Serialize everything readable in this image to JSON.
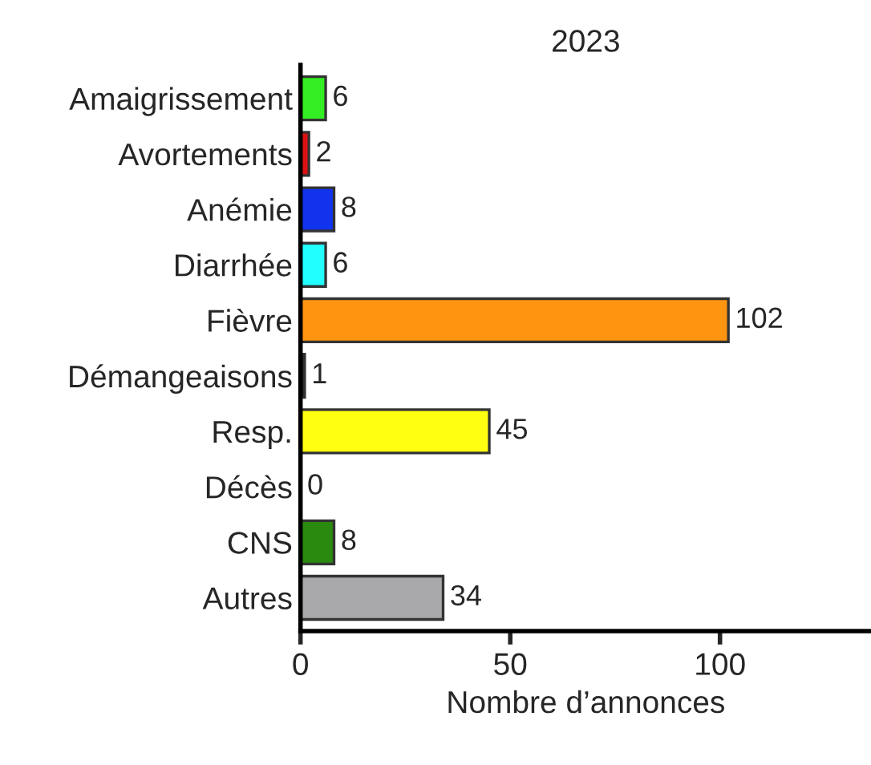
{
  "chart_data": {
    "type": "bar",
    "orientation": "horizontal",
    "title": "2023",
    "xlabel": "Nombre d’annonces",
    "categories": [
      "Amaigrissement",
      "Avortements",
      "Anémie",
      "Diarrhée",
      "Fièvre",
      "Démangeaisons",
      "Resp.",
      "Décès",
      "CNS",
      "Autres"
    ],
    "values": [
      6,
      2,
      8,
      6,
      102,
      1,
      45,
      0,
      8,
      34
    ],
    "colors": [
      "#33ee22",
      "#dd1111",
      "#1133ee",
      "#22ffff",
      "#ff9411",
      "#222222",
      "#ffff11",
      "#ffffff",
      "#2a8a10",
      "#a8a8aa"
    ],
    "xlim": [
      0,
      136
    ],
    "xticks": [
      0,
      50,
      100
    ],
    "data_labels": true,
    "grid": false,
    "legend": false
  }
}
